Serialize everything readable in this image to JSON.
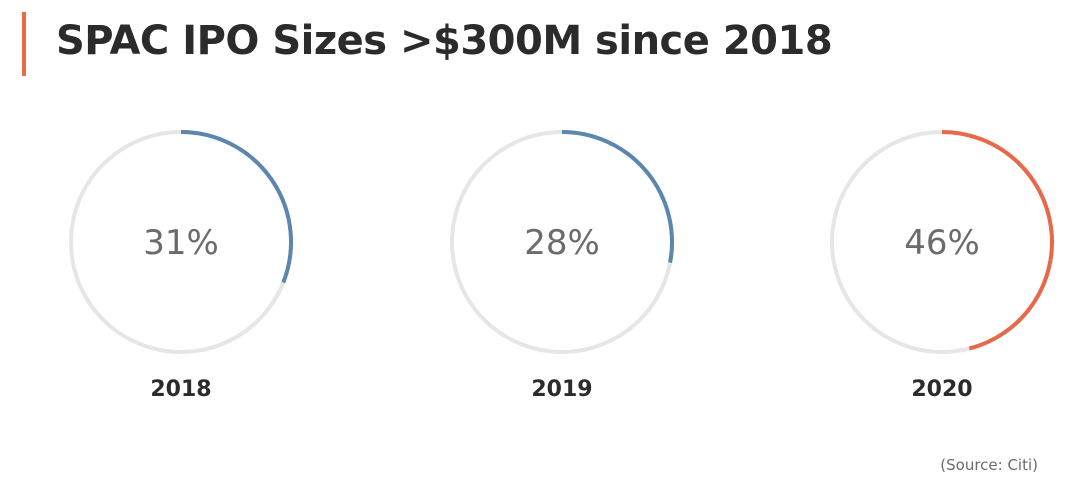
{
  "header": {
    "title": "SPAC IPO Sizes >$300M since 2018"
  },
  "footer": {
    "source": "(Source: Citi)"
  },
  "colors": {
    "accent": "#e8694a",
    "track": "#e6e6e6",
    "blue": "#5b86ad",
    "orange": "#e8694a"
  },
  "chart_data": {
    "type": "pie",
    "title": "SPAC IPO Sizes >$300M since 2018",
    "items": [
      {
        "category": "2018",
        "value": 31,
        "label": "31%",
        "color": "#5b86ad"
      },
      {
        "category": "2019",
        "value": 28,
        "label": "28%",
        "color": "#5b86ad"
      },
      {
        "category": "2020",
        "value": 46,
        "label": "46%",
        "color": "#e8694a"
      }
    ]
  }
}
